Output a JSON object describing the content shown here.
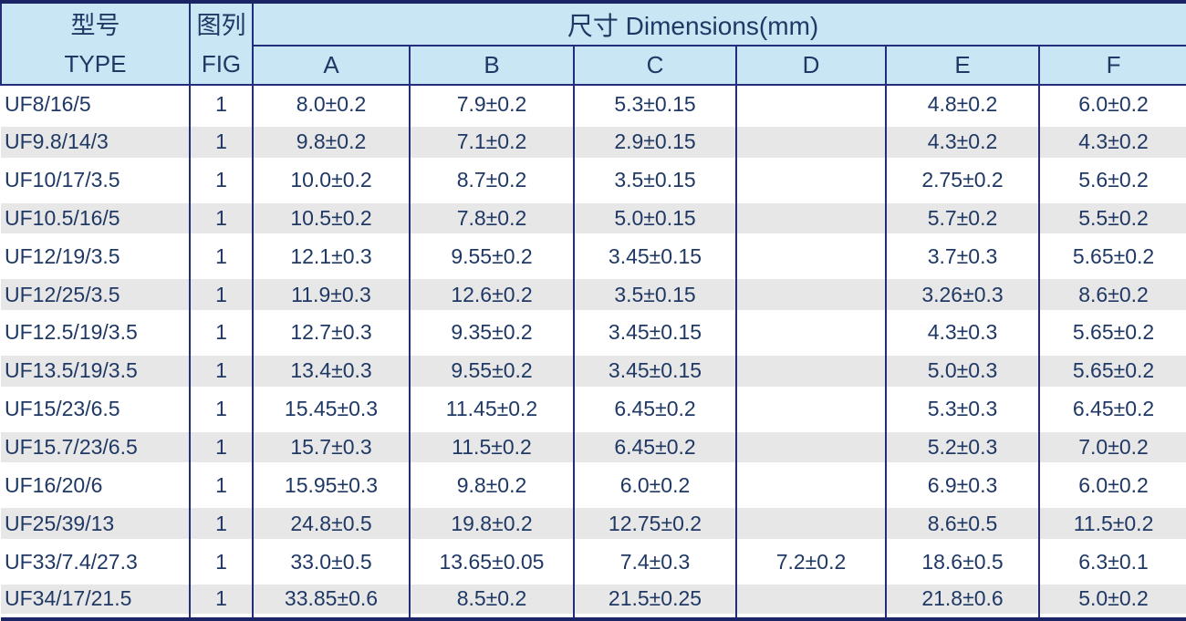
{
  "table": {
    "header": {
      "type_cn": "型号",
      "type_en": "TYPE",
      "fig_cn": "图列",
      "fig_en": "FIG",
      "dims_group": "尺寸 Dimensions(mm)",
      "dims": [
        "A",
        "B",
        "C",
        "D",
        "E",
        "F"
      ]
    },
    "rows": [
      {
        "type": "UF8/16/5",
        "fig": "1",
        "A": "8.0±0.2",
        "B": "7.9±0.2",
        "C": "5.3±0.15",
        "D": "",
        "E": "4.8±0.2",
        "F": "6.0±0.2"
      },
      {
        "type": "UF9.8/14/3",
        "fig": "1",
        "A": "9.8±0.2",
        "B": "7.1±0.2",
        "C": "2.9±0.15",
        "D": "",
        "E": "4.3±0.2",
        "F": "4.3±0.2"
      },
      {
        "type": "UF10/17/3.5",
        "fig": "1",
        "A": "10.0±0.2",
        "B": "8.7±0.2",
        "C": "3.5±0.15",
        "D": "",
        "E": "2.75±0.2",
        "F": "5.6±0.2"
      },
      {
        "type": "UF10.5/16/5",
        "fig": "1",
        "A": "10.5±0.2",
        "B": "7.8±0.2",
        "C": "5.0±0.15",
        "D": "",
        "E": "5.7±0.2",
        "F": "5.5±0.2"
      },
      {
        "type": "UF12/19/3.5",
        "fig": "1",
        "A": "12.1±0.3",
        "B": "9.55±0.2",
        "C": "3.45±0.15",
        "D": "",
        "E": "3.7±0.3",
        "F": "5.65±0.2"
      },
      {
        "type": "UF12/25/3.5",
        "fig": "1",
        "A": "11.9±0.3",
        "B": "12.6±0.2",
        "C": "3.5±0.15",
        "D": "",
        "E": "3.26±0.3",
        "F": "8.6±0.2"
      },
      {
        "type": "UF12.5/19/3.5",
        "fig": "1",
        "A": "12.7±0.3",
        "B": "9.35±0.2",
        "C": "3.45±0.15",
        "D": "",
        "E": "4.3±0.3",
        "F": "5.65±0.2"
      },
      {
        "type": "UF13.5/19/3.5",
        "fig": "1",
        "A": "13.4±0.3",
        "B": "9.55±0.2",
        "C": "3.45±0.15",
        "D": "",
        "E": "5.0±0.3",
        "F": "5.65±0.2"
      },
      {
        "type": "UF15/23/6.5",
        "fig": "1",
        "A": "15.45±0.3",
        "B": "11.45±0.2",
        "C": "6.45±0.2",
        "D": "",
        "E": "5.3±0.3",
        "F": "6.45±0.2"
      },
      {
        "type": "UF15.7/23/6.5",
        "fig": "1",
        "A": "15.7±0.3",
        "B": "11.5±0.2",
        "C": "6.45±0.2",
        "D": "",
        "E": "5.2±0.3",
        "F": "7.0±0.2"
      },
      {
        "type": "UF16/20/6",
        "fig": "1",
        "A": "15.95±0.3",
        "B": "9.8±0.2",
        "C": "6.0±0.2",
        "D": "",
        "E": "6.9±0.3",
        "F": "6.0±0.2"
      },
      {
        "type": "UF25/39/13",
        "fig": "1",
        "A": "24.8±0.5",
        "B": "19.8±0.2",
        "C": "12.75±0.2",
        "D": "",
        "E": "8.6±0.5",
        "F": "11.5±0.2"
      },
      {
        "type": "UF33/7.4/27.3",
        "fig": "1",
        "A": "33.0±0.5",
        "B": "13.65±0.05",
        "C": "7.4±0.3",
        "D": "7.2±0.2",
        "E": "18.6±0.5",
        "F": "6.3±0.1"
      },
      {
        "type": "UF34/17/21.5",
        "fig": "1",
        "A": "33.85±0.6",
        "B": "8.5±0.2",
        "C": "21.5±0.25",
        "D": "",
        "E": "21.8±0.6",
        "F": "5.0±0.2"
      }
    ]
  },
  "colors": {
    "header_bg": "#c9e6f5",
    "stripe": "#e8e7e7",
    "text": "#1f3864",
    "border": "#232d7c",
    "frame": "#1b2566"
  }
}
